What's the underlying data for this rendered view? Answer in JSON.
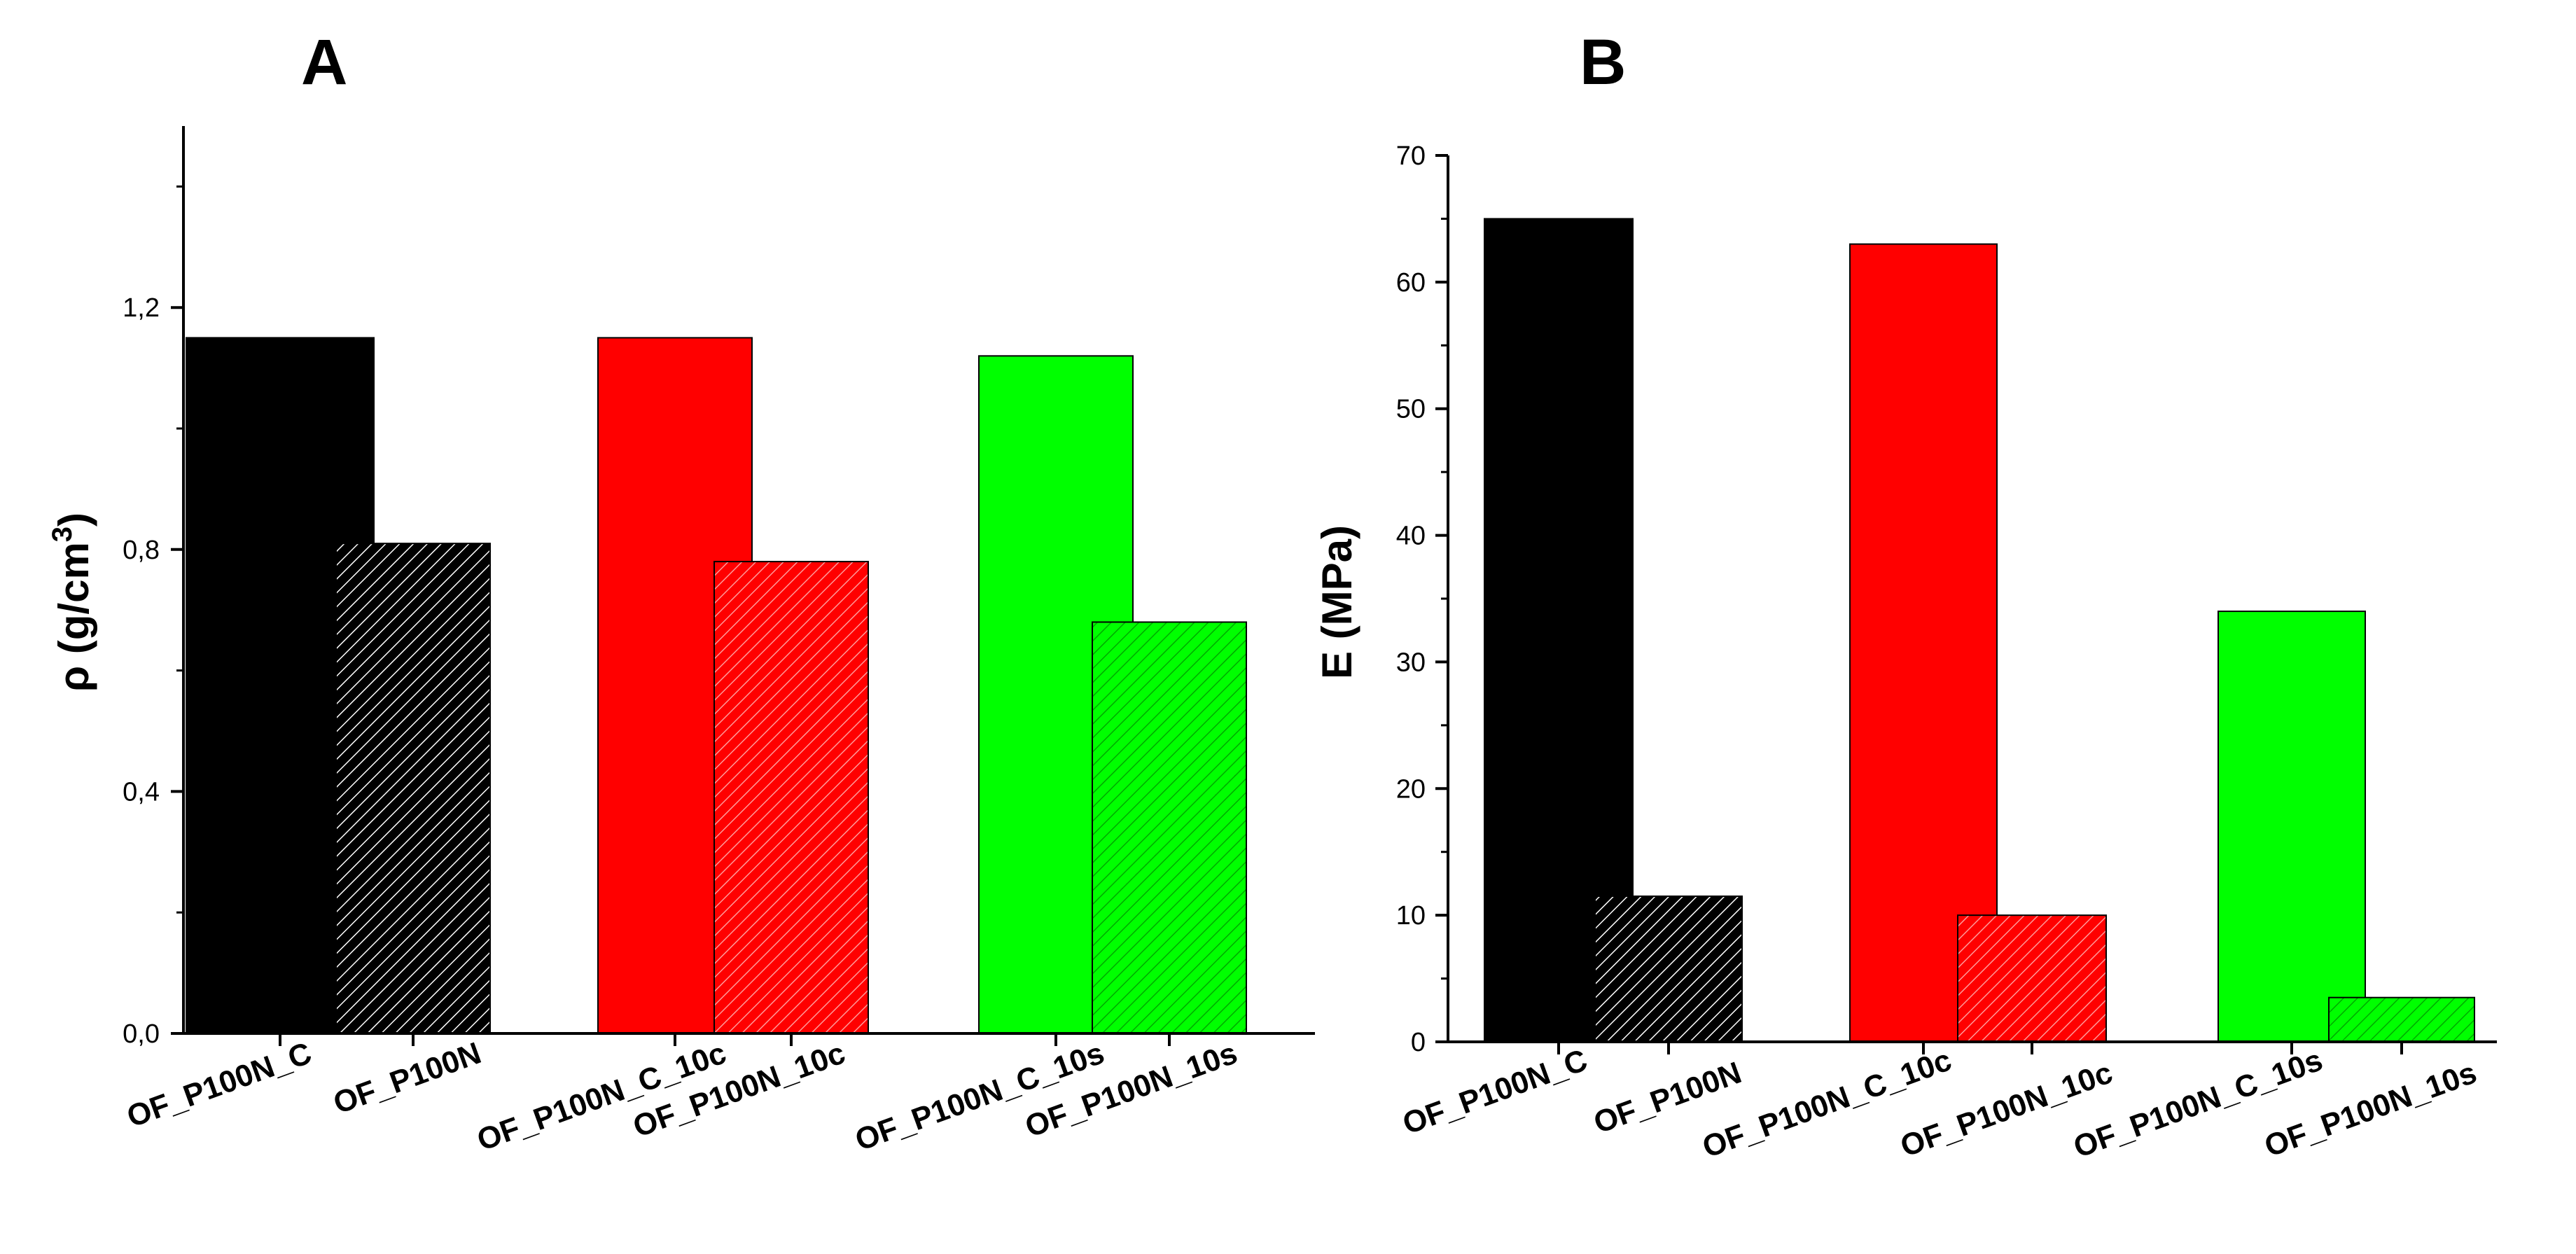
{
  "chart_data": [
    {
      "type": "bar",
      "panel": "A",
      "title": "A",
      "ylabel_main": "ρ (g/cm",
      "ylabel_sup": "3",
      "ylabel_close": ")",
      "xlabel": "",
      "ylim": [
        0,
        1.5
      ],
      "yticks": [
        {
          "value": 0.0,
          "label": "0,0"
        },
        {
          "value": 0.4,
          "label": "0,4"
        },
        {
          "value": 0.8,
          "label": "0,8"
        },
        {
          "value": 1.2,
          "label": "1,2"
        }
      ],
      "grid": false,
      "groups": [
        {
          "name": "OF_P100N_C",
          "value": 1.15,
          "color": "#000000",
          "hatched": false
        },
        {
          "name": "OF_P100N",
          "value": 0.81,
          "color": "#000000",
          "hatched": true
        },
        {
          "name": "OF_P100N_C_10c",
          "value": 1.15,
          "color": "#ff0000",
          "hatched": false
        },
        {
          "name": "OF_P100N_10c",
          "value": 0.78,
          "color": "#ff0000",
          "hatched": true
        },
        {
          "name": "OF_P100N_C_10s",
          "value": 1.12,
          "color": "#00ff00",
          "hatched": false
        },
        {
          "name": "OF_P100N_10s",
          "value": 0.68,
          "color": "#00ff00",
          "hatched": true
        }
      ]
    },
    {
      "type": "bar",
      "panel": "B",
      "title": "B",
      "ylabel_main": "E (MPa)",
      "xlabel": "",
      "ylim": [
        0,
        70
      ],
      "yticks": [
        {
          "value": 0,
          "label": "0"
        },
        {
          "value": 10,
          "label": "10"
        },
        {
          "value": 20,
          "label": "20"
        },
        {
          "value": 30,
          "label": "30"
        },
        {
          "value": 40,
          "label": "40"
        },
        {
          "value": 50,
          "label": "50"
        },
        {
          "value": 60,
          "label": "60"
        },
        {
          "value": 70,
          "label": "70"
        }
      ],
      "grid": false,
      "groups": [
        {
          "name": "OF_P100N_C",
          "value": 65,
          "color": "#000000",
          "hatched": false
        },
        {
          "name": "OF_P100N",
          "value": 11.5,
          "color": "#000000",
          "hatched": true
        },
        {
          "name": "OF_P100N_C_10c",
          "value": 63,
          "color": "#ff0000",
          "hatched": false
        },
        {
          "name": "OF_P100N_10c",
          "value": 10,
          "color": "#ff0000",
          "hatched": true
        },
        {
          "name": "OF_P100N_C_10s",
          "value": 34,
          "color": "#00ff00",
          "hatched": false
        },
        {
          "name": "OF_P100N_10s",
          "value": 3.5,
          "color": "#00ff00",
          "hatched": true
        }
      ]
    }
  ]
}
